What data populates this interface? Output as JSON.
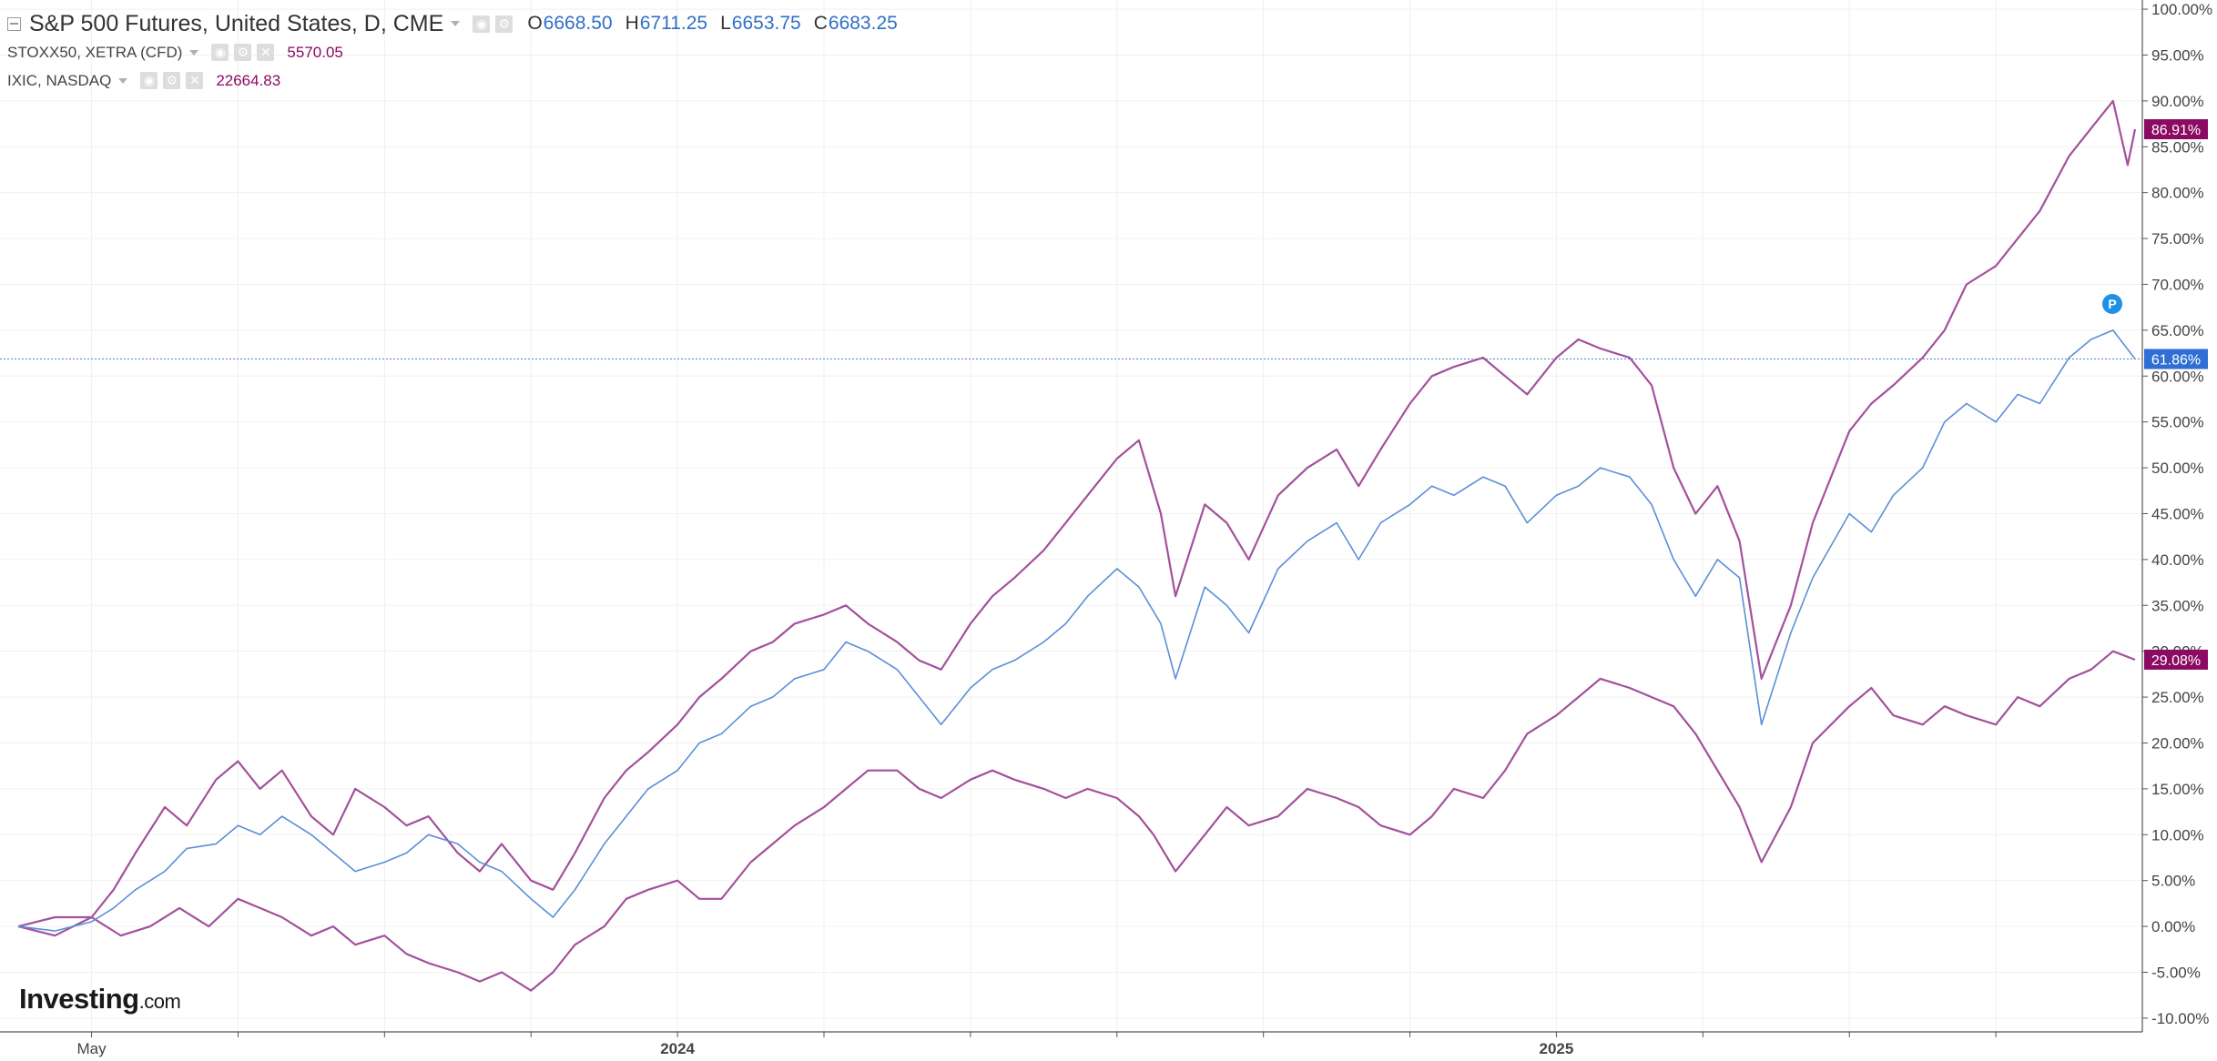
{
  "legend": {
    "main": {
      "name": "S&P 500 Futures, United States, D, CME",
      "open_key": "O",
      "open": "6668.50",
      "high_key": "H",
      "high": "6711.25",
      "low_key": "L",
      "low": "6653.75",
      "close_key": "C",
      "close": "6683.25"
    },
    "sub": [
      {
        "name": "STOXX50, XETRA (CFD)",
        "value": "5570.05"
      },
      {
        "name": "IXIC, NASDAQ",
        "value": "22664.83"
      }
    ]
  },
  "logo": {
    "main": "Investing",
    "suffix": ".com"
  },
  "marker": {
    "label": "P"
  },
  "colors": {
    "sp500": "#5b8fd6",
    "stoxx50": "#a3519b",
    "ixic": "#a3519b",
    "badge_blue": "#2f6fd4",
    "badge_purple": "#8b0a62",
    "grid": "#f0f0f0"
  },
  "chart_data": {
    "type": "line",
    "x_unit": "months since 2023-04",
    "xlim": [
      -0.25,
      29.0
    ],
    "ylim": [
      -11.5,
      101
    ],
    "grid": true,
    "y_axis_side": "right",
    "y_ticks": [
      100,
      95,
      90,
      85,
      80,
      75,
      70,
      65,
      60,
      55,
      50,
      45,
      40,
      35,
      30,
      25,
      20,
      15,
      10,
      5,
      0,
      -5,
      -10
    ],
    "y_tick_labels": [
      "100.00%",
      "95.00%",
      "90.00%",
      "85.00%",
      "80.00%",
      "75.00%",
      "70.00%",
      "65.00%",
      "60.00%",
      "55.00%",
      "50.00%",
      "45.00%",
      "40.00%",
      "35.00%",
      "30.00%",
      "25.00%",
      "20.00%",
      "15.00%",
      "10.00%",
      "5.00%",
      "0.00%",
      "-5.00%",
      "-10.00%"
    ],
    "x_tick_labels": [
      {
        "x": 1,
        "label": "May"
      },
      {
        "x": 9,
        "label": "2024"
      },
      {
        "x": 21,
        "label": "2025"
      }
    ],
    "x_ticks_minor": [
      3,
      5,
      7,
      11,
      13,
      15,
      17,
      19,
      23,
      25,
      27
    ],
    "series": [
      {
        "name": "S&P 500 Futures, United States, D, CME",
        "key": "sp500",
        "last_label": "61.86%",
        "points": [
          [
            0,
            0
          ],
          [
            0.5,
            -0.5
          ],
          [
            1,
            0.5
          ],
          [
            1.3,
            2
          ],
          [
            1.6,
            4
          ],
          [
            2,
            6
          ],
          [
            2.3,
            8.5
          ],
          [
            2.7,
            9
          ],
          [
            3,
            11
          ],
          [
            3.3,
            10
          ],
          [
            3.6,
            12
          ],
          [
            4,
            10
          ],
          [
            4.3,
            8
          ],
          [
            4.6,
            6
          ],
          [
            5,
            7
          ],
          [
            5.3,
            8
          ],
          [
            5.6,
            10
          ],
          [
            6,
            9
          ],
          [
            6.3,
            7
          ],
          [
            6.6,
            6
          ],
          [
            7,
            3
          ],
          [
            7.3,
            1
          ],
          [
            7.6,
            4
          ],
          [
            8,
            9
          ],
          [
            8.3,
            12
          ],
          [
            8.6,
            15
          ],
          [
            9,
            17
          ],
          [
            9.3,
            20
          ],
          [
            9.6,
            21
          ],
          [
            10,
            24
          ],
          [
            10.3,
            25
          ],
          [
            10.6,
            27
          ],
          [
            11,
            28
          ],
          [
            11.3,
            31
          ],
          [
            11.6,
            30
          ],
          [
            12,
            28
          ],
          [
            12.3,
            25
          ],
          [
            12.6,
            22
          ],
          [
            13,
            26
          ],
          [
            13.3,
            28
          ],
          [
            13.6,
            29
          ],
          [
            14,
            31
          ],
          [
            14.3,
            33
          ],
          [
            14.6,
            36
          ],
          [
            15,
            39
          ],
          [
            15.3,
            37
          ],
          [
            15.6,
            33
          ],
          [
            15.8,
            27
          ],
          [
            16.2,
            37
          ],
          [
            16.5,
            35
          ],
          [
            16.8,
            32
          ],
          [
            17.2,
            39
          ],
          [
            17.6,
            42
          ],
          [
            18,
            44
          ],
          [
            18.3,
            40
          ],
          [
            18.6,
            44
          ],
          [
            19,
            46
          ],
          [
            19.3,
            48
          ],
          [
            19.6,
            47
          ],
          [
            20,
            49
          ],
          [
            20.3,
            48
          ],
          [
            20.6,
            44
          ],
          [
            21,
            47
          ],
          [
            21.3,
            48
          ],
          [
            21.6,
            50
          ],
          [
            22,
            49
          ],
          [
            22.3,
            46
          ],
          [
            22.6,
            40
          ],
          [
            22.9,
            36
          ],
          [
            23.2,
            40
          ],
          [
            23.5,
            38
          ],
          [
            23.8,
            22
          ],
          [
            24.2,
            32
          ],
          [
            24.5,
            38
          ],
          [
            25,
            45
          ],
          [
            25.3,
            43
          ],
          [
            25.6,
            47
          ],
          [
            26,
            50
          ],
          [
            26.3,
            55
          ],
          [
            26.6,
            57
          ],
          [
            27,
            55
          ],
          [
            27.3,
            58
          ],
          [
            27.6,
            57
          ],
          [
            28,
            62
          ],
          [
            28.3,
            64
          ],
          [
            28.6,
            65
          ],
          [
            28.9,
            61.86
          ]
        ]
      },
      {
        "name": "STOXX50, XETRA (CFD)",
        "key": "stoxx50",
        "last_label": "29.08%",
        "points": [
          [
            0,
            0
          ],
          [
            0.5,
            1
          ],
          [
            1,
            1
          ],
          [
            1.4,
            -1
          ],
          [
            1.8,
            0
          ],
          [
            2.2,
            2
          ],
          [
            2.6,
            0
          ],
          [
            3,
            3
          ],
          [
            3.3,
            2
          ],
          [
            3.6,
            1
          ],
          [
            4,
            -1
          ],
          [
            4.3,
            0
          ],
          [
            4.6,
            -2
          ],
          [
            5,
            -1
          ],
          [
            5.3,
            -3
          ],
          [
            5.6,
            -4
          ],
          [
            6,
            -5
          ],
          [
            6.3,
            -6
          ],
          [
            6.6,
            -5
          ],
          [
            7,
            -7
          ],
          [
            7.3,
            -5
          ],
          [
            7.6,
            -2
          ],
          [
            8,
            0
          ],
          [
            8.3,
            3
          ],
          [
            8.6,
            4
          ],
          [
            9,
            5
          ],
          [
            9.3,
            3
          ],
          [
            9.6,
            3
          ],
          [
            10,
            7
          ],
          [
            10.3,
            9
          ],
          [
            10.6,
            11
          ],
          [
            11,
            13
          ],
          [
            11.3,
            15
          ],
          [
            11.6,
            17
          ],
          [
            12,
            17
          ],
          [
            12.3,
            15
          ],
          [
            12.6,
            14
          ],
          [
            13,
            16
          ],
          [
            13.3,
            17
          ],
          [
            13.6,
            16
          ],
          [
            14,
            15
          ],
          [
            14.3,
            14
          ],
          [
            14.6,
            15
          ],
          [
            15,
            14
          ],
          [
            15.3,
            12
          ],
          [
            15.5,
            10
          ],
          [
            15.8,
            6
          ],
          [
            16.2,
            10
          ],
          [
            16.5,
            13
          ],
          [
            16.8,
            11
          ],
          [
            17.2,
            12
          ],
          [
            17.6,
            15
          ],
          [
            18,
            14
          ],
          [
            18.3,
            13
          ],
          [
            18.6,
            11
          ],
          [
            19,
            10
          ],
          [
            19.3,
            12
          ],
          [
            19.6,
            15
          ],
          [
            20,
            14
          ],
          [
            20.3,
            17
          ],
          [
            20.6,
            21
          ],
          [
            21,
            23
          ],
          [
            21.3,
            25
          ],
          [
            21.6,
            27
          ],
          [
            22,
            26
          ],
          [
            22.3,
            25
          ],
          [
            22.6,
            24
          ],
          [
            22.9,
            21
          ],
          [
            23.2,
            17
          ],
          [
            23.5,
            13
          ],
          [
            23.8,
            7
          ],
          [
            24.2,
            13
          ],
          [
            24.5,
            20
          ],
          [
            25,
            24
          ],
          [
            25.3,
            26
          ],
          [
            25.6,
            23
          ],
          [
            26,
            22
          ],
          [
            26.3,
            24
          ],
          [
            26.6,
            23
          ],
          [
            27,
            22
          ],
          [
            27.3,
            25
          ],
          [
            27.6,
            24
          ],
          [
            28,
            27
          ],
          [
            28.3,
            28
          ],
          [
            28.6,
            30
          ],
          [
            28.9,
            29.08
          ]
        ]
      },
      {
        "name": "IXIC, NASDAQ",
        "key": "ixic",
        "last_label": "86.91%",
        "points": [
          [
            0,
            0
          ],
          [
            0.5,
            -1
          ],
          [
            1,
            1
          ],
          [
            1.3,
            4
          ],
          [
            1.6,
            8
          ],
          [
            2,
            13
          ],
          [
            2.3,
            11
          ],
          [
            2.7,
            16
          ],
          [
            3,
            18
          ],
          [
            3.3,
            15
          ],
          [
            3.6,
            17
          ],
          [
            4,
            12
          ],
          [
            4.3,
            10
          ],
          [
            4.6,
            15
          ],
          [
            5,
            13
          ],
          [
            5.3,
            11
          ],
          [
            5.6,
            12
          ],
          [
            6,
            8
          ],
          [
            6.3,
            6
          ],
          [
            6.6,
            9
          ],
          [
            7,
            5
          ],
          [
            7.3,
            4
          ],
          [
            7.6,
            8
          ],
          [
            8,
            14
          ],
          [
            8.3,
            17
          ],
          [
            8.6,
            19
          ],
          [
            9,
            22
          ],
          [
            9.3,
            25
          ],
          [
            9.6,
            27
          ],
          [
            10,
            30
          ],
          [
            10.3,
            31
          ],
          [
            10.6,
            33
          ],
          [
            11,
            34
          ],
          [
            11.3,
            35
          ],
          [
            11.6,
            33
          ],
          [
            12,
            31
          ],
          [
            12.3,
            29
          ],
          [
            12.6,
            28
          ],
          [
            13,
            33
          ],
          [
            13.3,
            36
          ],
          [
            13.6,
            38
          ],
          [
            14,
            41
          ],
          [
            14.3,
            44
          ],
          [
            14.6,
            47
          ],
          [
            15,
            51
          ],
          [
            15.3,
            53
          ],
          [
            15.6,
            45
          ],
          [
            15.8,
            36
          ],
          [
            16.2,
            46
          ],
          [
            16.5,
            44
          ],
          [
            16.8,
            40
          ],
          [
            17.2,
            47
          ],
          [
            17.6,
            50
          ],
          [
            18,
            52
          ],
          [
            18.3,
            48
          ],
          [
            18.6,
            52
          ],
          [
            19,
            57
          ],
          [
            19.3,
            60
          ],
          [
            19.6,
            61
          ],
          [
            20,
            62
          ],
          [
            20.3,
            60
          ],
          [
            20.6,
            58
          ],
          [
            21,
            62
          ],
          [
            21.3,
            64
          ],
          [
            21.6,
            63
          ],
          [
            22,
            62
          ],
          [
            22.3,
            59
          ],
          [
            22.6,
            50
          ],
          [
            22.9,
            45
          ],
          [
            23.2,
            48
          ],
          [
            23.5,
            42
          ],
          [
            23.8,
            27
          ],
          [
            24.2,
            35
          ],
          [
            24.5,
            44
          ],
          [
            25,
            54
          ],
          [
            25.3,
            57
          ],
          [
            25.6,
            59
          ],
          [
            26,
            62
          ],
          [
            26.3,
            65
          ],
          [
            26.6,
            70
          ],
          [
            27,
            72
          ],
          [
            27.3,
            75
          ],
          [
            27.6,
            78
          ],
          [
            28,
            84
          ],
          [
            28.3,
            87
          ],
          [
            28.6,
            90
          ],
          [
            28.8,
            83
          ],
          [
            28.9,
            86.91
          ]
        ]
      }
    ]
  }
}
